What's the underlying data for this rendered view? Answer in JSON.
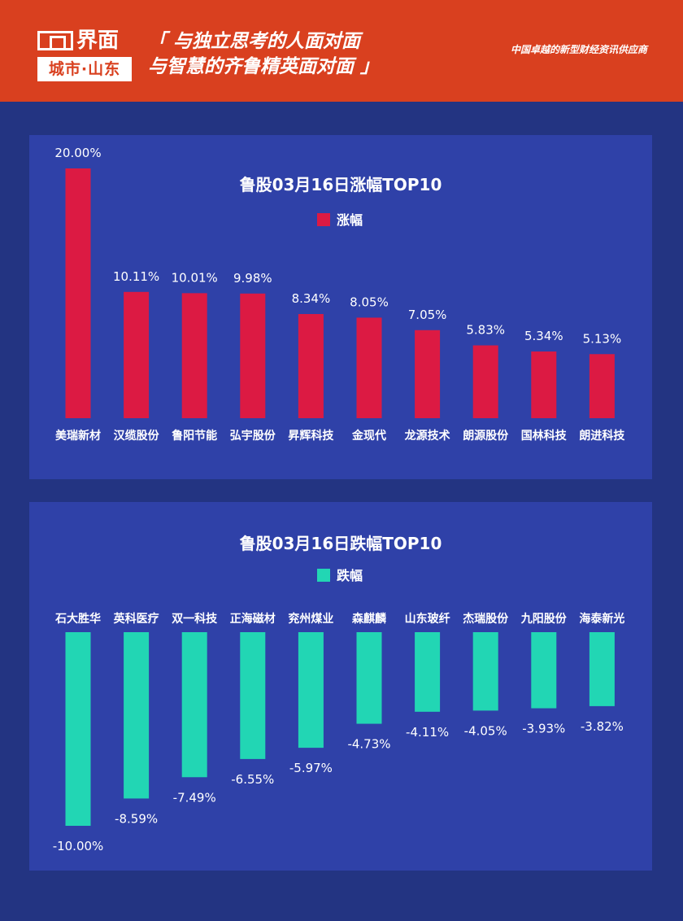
{
  "header": {
    "logo_main": "界面",
    "logo_sub": "城市·山东",
    "slogan_line1": "「 与独立思考的人面对面",
    "slogan_line2": "与智慧的齐鲁精英面对面 」",
    "tagline": "中国卓越的新型财经资讯供应商"
  },
  "colors": {
    "header_bg": "#d9401f",
    "page_bg": "#233482",
    "panel_bg": "#2f41a8",
    "rise_bar": "#dc1a43",
    "fall_bar": "#22d6b4"
  },
  "chart_data": [
    {
      "type": "bar",
      "title": "鲁股03月16日涨幅TOP10",
      "legend": "涨幅",
      "categories": [
        "美瑞新材",
        "汉缆股份",
        "鲁阳节能",
        "弘宇股份",
        "昇辉科技",
        "金现代",
        "龙源技术",
        "朗源股份",
        "国林科技",
        "朗进科技"
      ],
      "values": [
        20.0,
        10.11,
        10.01,
        9.98,
        8.34,
        8.05,
        7.05,
        5.83,
        5.34,
        5.13
      ],
      "labels": [
        "20.00%",
        "10.11%",
        "10.01%",
        "9.98%",
        "8.34%",
        "8.05%",
        "7.05%",
        "5.83%",
        "5.34%",
        "5.13%"
      ],
      "color": "#dc1a43",
      "ylim": [
        0,
        20
      ]
    },
    {
      "type": "bar",
      "title": "鲁股03月16日跌幅TOP10",
      "legend": "跌幅",
      "categories": [
        "石大胜华",
        "英科医疗",
        "双一科技",
        "正海磁材",
        "兖州煤业",
        "森麒麟",
        "山东玻纤",
        "杰瑞股份",
        "九阳股份",
        "海泰新光"
      ],
      "values": [
        -10.0,
        -8.59,
        -7.49,
        -6.55,
        -5.97,
        -4.73,
        -4.11,
        -4.05,
        -3.93,
        -3.82
      ],
      "labels": [
        "-10.00%",
        "-8.59%",
        "-7.49%",
        "-6.55%",
        "-5.97%",
        "-4.73%",
        "-4.11%",
        "-4.05%",
        "-3.93%",
        "-3.82%"
      ],
      "color": "#22d6b4",
      "ylim": [
        -10,
        0
      ]
    }
  ]
}
